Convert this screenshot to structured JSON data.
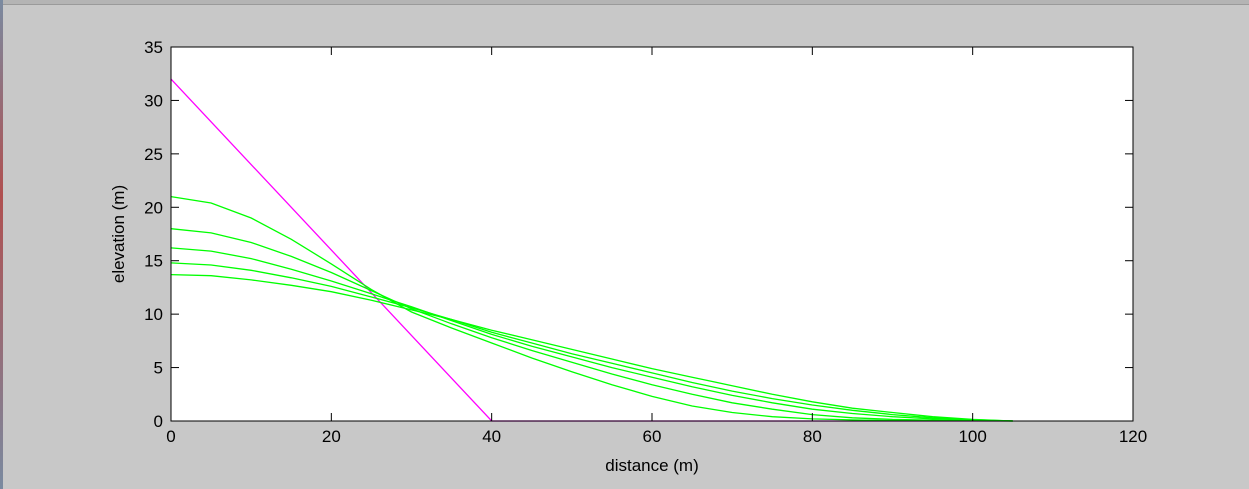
{
  "chart_data": {
    "type": "line",
    "title": "",
    "xlabel": "distance (m)",
    "ylabel": "elevation (m)",
    "xlim": [
      0,
      120
    ],
    "ylim": [
      0,
      35
    ],
    "xticks": [
      0,
      20,
      40,
      60,
      80,
      100,
      120
    ],
    "yticks": [
      0,
      5,
      10,
      15,
      20,
      25,
      30,
      35
    ],
    "grid": false,
    "legend": "none",
    "background": "#c8c8c8",
    "series": [
      {
        "color": "#ff00ff",
        "x": [
          0,
          40,
          105
        ],
        "y": [
          32,
          0,
          0
        ]
      },
      {
        "color": "#00ff00",
        "x": [
          0,
          5,
          10,
          15,
          20,
          25,
          30,
          35,
          40,
          45,
          50,
          55,
          60,
          65,
          70,
          75,
          80,
          85,
          90,
          95,
          100,
          105
        ],
        "y": [
          21.0,
          20.4,
          19.0,
          17.0,
          14.7,
          12.3,
          10.2,
          8.7,
          7.3,
          5.9,
          4.6,
          3.4,
          2.3,
          1.4,
          0.8,
          0.4,
          0.2,
          0.1,
          0.05,
          0.03,
          0.02,
          0.0
        ]
      },
      {
        "color": "#00ff00",
        "x": [
          0,
          5,
          10,
          15,
          20,
          25,
          30,
          35,
          40,
          45,
          50,
          55,
          60,
          65,
          70,
          75,
          80,
          85,
          90,
          95,
          100,
          105
        ],
        "y": [
          18.0,
          17.6,
          16.7,
          15.4,
          13.9,
          12.2,
          10.5,
          9.1,
          7.8,
          6.6,
          5.5,
          4.4,
          3.4,
          2.5,
          1.7,
          1.1,
          0.6,
          0.3,
          0.15,
          0.08,
          0.04,
          0.0
        ]
      },
      {
        "color": "#00ff00",
        "x": [
          0,
          5,
          10,
          15,
          20,
          25,
          30,
          35,
          40,
          45,
          50,
          55,
          60,
          65,
          70,
          75,
          80,
          85,
          90,
          95,
          100,
          105
        ],
        "y": [
          16.2,
          15.9,
          15.2,
          14.2,
          13.1,
          11.9,
          10.7,
          9.4,
          8.1,
          7.0,
          6.0,
          5.0,
          4.1,
          3.2,
          2.4,
          1.7,
          1.1,
          0.7,
          0.4,
          0.2,
          0.08,
          0.0
        ]
      },
      {
        "color": "#00ff00",
        "x": [
          0,
          5,
          10,
          15,
          20,
          25,
          30,
          35,
          40,
          45,
          50,
          55,
          60,
          65,
          70,
          75,
          80,
          85,
          90,
          95,
          100,
          105
        ],
        "y": [
          14.8,
          14.6,
          14.1,
          13.4,
          12.6,
          11.6,
          10.6,
          9.5,
          8.3,
          7.3,
          6.3,
          5.4,
          4.5,
          3.6,
          2.8,
          2.1,
          1.5,
          1.0,
          0.6,
          0.3,
          0.12,
          0.0
        ]
      },
      {
        "color": "#00ff00",
        "x": [
          0,
          5,
          10,
          15,
          20,
          25,
          30,
          35,
          40,
          45,
          50,
          55,
          60,
          65,
          70,
          75,
          80,
          85,
          90,
          95,
          100,
          105
        ],
        "y": [
          13.7,
          13.6,
          13.2,
          12.7,
          12.1,
          11.3,
          10.4,
          9.5,
          8.5,
          7.6,
          6.7,
          5.8,
          4.9,
          4.1,
          3.3,
          2.5,
          1.8,
          1.2,
          0.8,
          0.4,
          0.15,
          0.0
        ]
      }
    ]
  }
}
